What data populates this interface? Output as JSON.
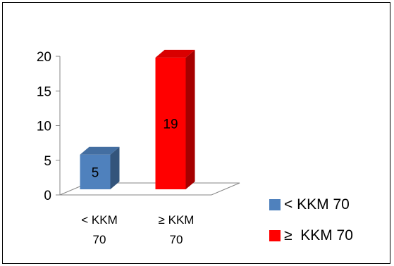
{
  "chart_data": {
    "type": "bar",
    "three_d": true,
    "categories": [
      "< KKM 70",
      "≥  KKM 70"
    ],
    "category_lines": [
      [
        "< KKM",
        "70"
      ],
      [
        "≥  KKM",
        "70"
      ]
    ],
    "values": [
      5,
      19
    ],
    "data_labels": [
      "5",
      "19"
    ],
    "colors": [
      "#4f81bd",
      "#ff0000"
    ],
    "ylim": [
      0,
      20
    ],
    "yticks": [
      "0",
      "5",
      "10",
      "15",
      "20"
    ],
    "grid": false,
    "legend_position": "right",
    "legend": [
      {
        "label": "< KKM 70",
        "color": "#4f81bd"
      },
      {
        "label": "≥  KKM 70",
        "color": "#ff0000"
      }
    ]
  }
}
